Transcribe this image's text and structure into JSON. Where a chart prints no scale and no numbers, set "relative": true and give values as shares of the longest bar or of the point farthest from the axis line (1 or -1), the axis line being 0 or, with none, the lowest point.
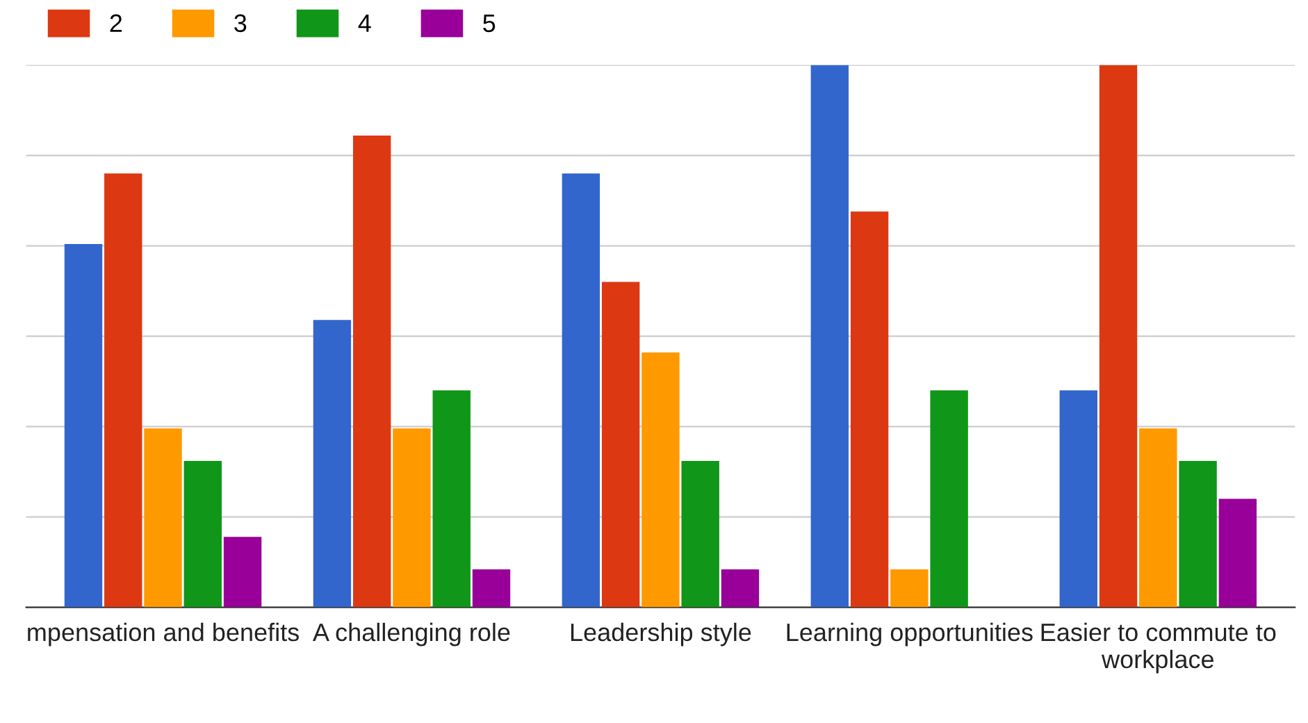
{
  "chart_data": {
    "type": "bar",
    "relative": true,
    "grid": "y",
    "legend": "top left",
    "categories": [
      "mpensation and benefits",
      "A challenging role",
      "Leadership style",
      "Learning opportunities",
      "Easier to commute to workplace"
    ],
    "series": [
      {
        "color": "#3366cc",
        "values": [
          0.67,
          0.53,
          0.8,
          1,
          0.4
        ]
      },
      {
        "name": "2",
        "color": "#dc3912",
        "values": [
          0.8,
          0.87,
          0.6,
          0.73,
          1
        ]
      },
      {
        "name": "3",
        "color": "#ff9900",
        "values": [
          0.33,
          0.33,
          0.47,
          0.07,
          0.33
        ]
      },
      {
        "name": "4",
        "color": "#109618",
        "values": [
          0.27,
          0.4,
          0.27,
          0.4,
          0.27
        ]
      },
      {
        "name": "5",
        "color": "#990099",
        "values": [
          0.13,
          0.07,
          0.07,
          0,
          0.2
        ]
      }
    ]
  }
}
